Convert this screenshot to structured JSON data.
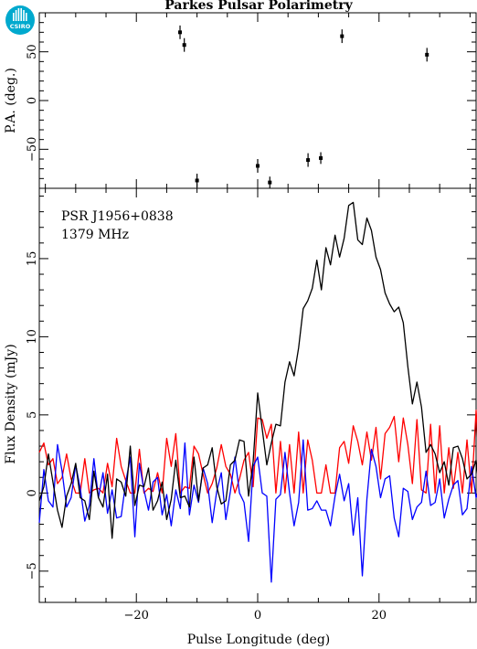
{
  "logo": {
    "text": "CSIRO",
    "color": "#00a9ce"
  },
  "chart_data": [
    {
      "type": "scatter",
      "title": "Parkes Pulsar Polarimetry",
      "ylabel": "P.A. (deg.)",
      "xlim": [
        -36,
        36
      ],
      "ylim": [
        -90,
        90
      ],
      "yticks": [
        -50,
        0,
        50
      ],
      "points": [
        {
          "x": -12.8,
          "y": 70,
          "err": 7
        },
        {
          "x": -12.1,
          "y": 57,
          "err": 7
        },
        {
          "x": -10.0,
          "y": -82,
          "err": 7
        },
        {
          "x": 0.0,
          "y": -67,
          "err": 7
        },
        {
          "x": 2.0,
          "y": -84,
          "err": 6
        },
        {
          "x": 8.3,
          "y": -61,
          "err": 7
        },
        {
          "x": 10.4,
          "y": -59,
          "err": 6
        },
        {
          "x": 13.9,
          "y": 66,
          "err": 7
        },
        {
          "x": 27.9,
          "y": 47,
          "err": 7
        }
      ]
    },
    {
      "type": "line",
      "xlabel": "Pulse Longitude (deg)",
      "ylabel": "Flux Density (mJy)",
      "xlim": [
        -36,
        36
      ],
      "ylim": [
        -7,
        19.5
      ],
      "xticks": [
        -20,
        0,
        20
      ],
      "yticks": [
        -5,
        0,
        5,
        10,
        15
      ],
      "annotations": [
        "PSR J1956+0838",
        "1379 MHz"
      ],
      "x_start": -36,
      "x_step": 0.75,
      "series": [
        {
          "color": "#000000",
          "values": [
            -0.5,
            0.4,
            2.5,
            0.7,
            -1.1,
            -2.2,
            -0.2,
            0.6,
            1.9,
            -0.3,
            -0.5,
            -1.7,
            1.4,
            -0.3,
            -0.9,
            1.2,
            -2.9,
            0.9,
            0.7,
            -0.2,
            3.0,
            -0.8,
            0.5,
            0.4,
            1.6,
            -1.1,
            -0.5,
            0.7,
            -1.7,
            -0.4,
            2.1,
            -0.3,
            -0.2,
            -0.9,
            2.3,
            -0.5,
            1.6,
            1.8,
            2.9,
            0.4,
            -0.7,
            -0.5,
            1.8,
            2.1,
            3.4,
            3.3,
            -0.2,
            2.0,
            6.4,
            4.1,
            1.8,
            3.2,
            4.4,
            4.3,
            7.1,
            8.4,
            7.5,
            9.3,
            11.8,
            12.3,
            13.1,
            14.9,
            13.0,
            15.7,
            14.6,
            16.5,
            15.1,
            16.3,
            18.4,
            18.6,
            16.2,
            15.9,
            17.6,
            16.8,
            15.1,
            14.3,
            12.8,
            12.1,
            11.6,
            11.9,
            10.9,
            8.1,
            5.7,
            7.1,
            5.5,
            2.6,
            3.1,
            2.5,
            1.3,
            2.0,
            0.5,
            2.9,
            3.0,
            2.2,
            0.9,
            1.2,
            2.1,
            -0.6,
            0.7,
            0.6,
            0.6,
            -1.7,
            0.6,
            -0.4,
            -1.3,
            -1.6,
            0.1,
            0.7,
            1.3,
            2.3,
            1.0,
            2.7,
            0.4,
            -0.4,
            1.4,
            -2.0,
            -0.2,
            -3.9,
            0.5,
            -4.3,
            -1.1,
            1.3,
            1.9,
            0.3,
            -0.4,
            0.8,
            1.4,
            0.6,
            -0.9,
            0.1,
            1.1,
            -0.6,
            1.4,
            0.4,
            -0.2,
            1.5,
            0.3,
            0.1,
            -0.3,
            1.2,
            0.4,
            1.6,
            1.2,
            1.8,
            0.7,
            -0.7,
            0.0,
            0.4,
            -0.8
          ]
        },
        {
          "color": "#ff0000",
          "values": [
            2.6,
            3.2,
            1.8,
            2.2,
            0.6,
            1.0,
            2.5,
            0.9,
            0.0,
            0.0,
            2.2,
            0.0,
            0.2,
            0.3,
            0.0,
            1.9,
            0.4,
            3.5,
            1.7,
            0.8,
            0.0,
            0.0,
            2.8,
            0.0,
            0.3,
            0.1,
            1.3,
            0.0,
            3.5,
            1.7,
            3.8,
            0.0,
            0.4,
            0.3,
            3.0,
            2.5,
            1.2,
            0.0,
            0.6,
            1.6,
            3.1,
            1.7,
            1.2,
            0.0,
            0.9,
            2.1,
            2.6,
            0.4,
            4.8,
            4.7,
            3.5,
            4.4,
            0.0,
            3.3,
            0.0,
            3.1,
            0.0,
            3.9,
            0.0,
            3.4,
            2.1,
            0.0,
            0.0,
            1.8,
            0.0,
            0.0,
            2.9,
            3.3,
            1.9,
            4.3,
            3.3,
            1.8,
            3.9,
            2.1,
            4.2,
            0.9,
            3.8,
            4.2,
            4.9,
            2.0,
            4.8,
            3.1,
            0.6,
            4.7,
            0.2,
            0.0,
            4.4,
            0.0,
            4.3,
            0.0,
            2.9,
            0.3,
            2.6,
            0.0,
            3.4,
            0.0,
            5.3,
            0.0,
            2.1,
            3.7,
            0.2,
            1.8,
            1.9,
            0.3,
            2.6,
            0.0,
            0.8,
            0.2,
            3.0,
            0.0,
            1.4,
            3.6,
            2.5,
            0.0,
            2.1,
            1.6,
            3.1,
            0.4,
            2.9,
            1.6,
            0.4,
            0.0,
            1.5,
            0.0,
            1.9,
            0.0,
            2.8,
            3.5,
            1.4,
            3.3,
            2.3,
            0.0,
            1.4,
            2.9,
            1.6,
            0.8,
            0.1,
            1.4,
            1.1,
            2.7,
            0.6,
            2.3,
            3.3,
            0.0,
            2.3,
            0.4,
            3.2,
            0.9,
            2.0,
            2.8
          ]
        },
        {
          "color": "#0000ff",
          "values": [
            -1.9,
            1.5,
            -0.5,
            -0.9,
            3.1,
            1.4,
            -0.9,
            -0.3,
            1.8,
            0.3,
            -1.8,
            -0.8,
            2.2,
            -0.3,
            1.3,
            -1.3,
            0.2,
            -1.6,
            -1.5,
            0.7,
            2.3,
            -2.8,
            1.9,
            0.2,
            -1.1,
            0.7,
            1.0,
            -1.4,
            -0.1,
            -2.1,
            0.2,
            -1.0,
            3.2,
            -1.4,
            0.5,
            -0.6,
            1.6,
            0.6,
            -1.9,
            0.1,
            1.3,
            -1.7,
            0.1,
            2.3,
            0.0,
            -0.6,
            -3.1,
            1.7,
            2.3,
            0.0,
            -0.2,
            -5.7,
            -0.4,
            -0.1,
            2.6,
            0.0,
            -2.1,
            -0.6,
            3.4,
            -1.1,
            -1.0,
            -0.5,
            -1.1,
            -1.1,
            -2.1,
            -0.2,
            1.2,
            -0.5,
            0.6,
            -2.7,
            -0.3,
            -5.3,
            -0.4,
            2.8,
            1.7,
            -0.3,
            0.9,
            1.1,
            -1.6,
            -2.8,
            0.3,
            0.1,
            -1.7,
            -0.9,
            -0.6,
            1.4,
            -0.8,
            -0.6,
            0.9,
            -1.6,
            -0.4,
            0.5,
            0.8,
            -1.4,
            -1.0,
            1.7,
            -0.3,
            0.6,
            1.6,
            0.0,
            -1.3,
            -1.2,
            -0.2,
            0.4,
            -2.2,
            -2.3,
            0.5,
            -0.8,
            1.7,
            0.1,
            -1.2,
            0.2,
            -0.3,
            0.7,
            1.1,
            1.7,
            -2.1,
            -0.7,
            -2.5,
            -0.7,
            1.3,
            0.0,
            1.9,
            -0.4,
            -1.1,
            -1.9,
            0.8,
            -0.4,
            0.2,
            -1.2,
            -0.4,
            0.4,
            1.3,
            -0.8,
            1.2,
            -1.3,
            -1.2,
            -0.1,
            -1.0,
            -1.4,
            0.8,
            1.9,
            -0.2,
            0.3,
            0.1,
            0.5,
            -0.7,
            1.2,
            -1.0
          ]
        }
      ]
    }
  ]
}
